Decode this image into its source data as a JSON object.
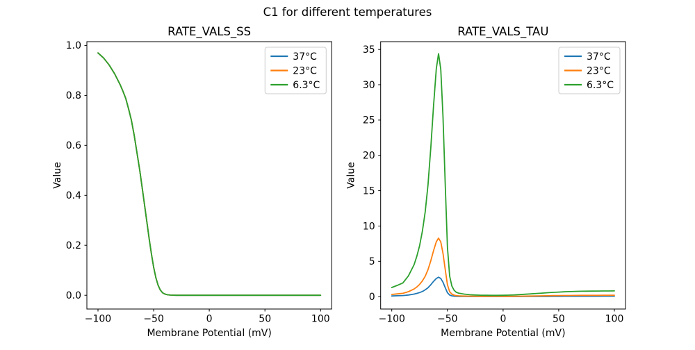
{
  "figure": {
    "title": "C1 for different temperatures",
    "background": "#ffffff"
  },
  "palette": {
    "blue": "#1f77b4",
    "orange": "#ff7f0e",
    "green": "#2ca02c"
  },
  "chart_data": [
    {
      "type": "line",
      "title": "RATE_VALS_SS",
      "xlabel": "Membrane Potential (mV)",
      "ylabel": "Value",
      "xlim": [
        -110,
        110
      ],
      "ylim": [
        -0.055,
        1.015
      ],
      "grid": false,
      "xticks": [
        -100,
        -50,
        0,
        50,
        100
      ],
      "xtick_labels": [
        "−100",
        "−50",
        "0",
        "50",
        "100"
      ],
      "yticks": [
        0.0,
        0.2,
        0.4,
        0.6,
        0.8,
        1.0
      ],
      "ytick_labels": [
        "0.0",
        "0.2",
        "0.4",
        "0.6",
        "0.8",
        "1.0"
      ],
      "legend": {
        "position": "upper right",
        "entries": [
          "37°C",
          "23°C",
          "6.3°C"
        ]
      },
      "note": "all three temperature curves coincide exactly; only the last-drawn (6.3°C, green) is visible",
      "x": [
        -100,
        -95,
        -90,
        -85,
        -80,
        -77.5,
        -75,
        -72.5,
        -70,
        -67.5,
        -65,
        -62.5,
        -60,
        -58,
        -56,
        -54,
        -52,
        -50,
        -48,
        -46,
        -44,
        -42,
        -40,
        -37.5,
        -35,
        -30,
        -25,
        -20,
        -15,
        -10,
        -5,
        0,
        5,
        10,
        15,
        20,
        25,
        30,
        35,
        40,
        45,
        50,
        55,
        60,
        65,
        70,
        75,
        80,
        85,
        90,
        95,
        100
      ],
      "series": [
        {
          "name": "37°C",
          "color": "#1f77b4",
          "values": [
            0.97,
            0.95,
            0.922,
            0.886,
            0.842,
            0.816,
            0.787,
            0.745,
            0.7,
            0.64,
            0.57,
            0.5,
            0.42,
            0.355,
            0.29,
            0.225,
            0.165,
            0.112,
            0.07,
            0.04,
            0.021,
            0.01,
            0.005,
            0.002,
            0.001,
            0,
            0,
            0,
            0,
            0,
            0,
            0,
            0,
            0,
            0,
            0,
            0,
            0,
            0,
            0,
            0,
            0,
            0,
            0,
            0,
            0,
            0,
            0,
            0,
            0,
            0,
            0
          ]
        },
        {
          "name": "23°C",
          "color": "#ff7f0e",
          "values": [
            0.97,
            0.95,
            0.922,
            0.886,
            0.842,
            0.816,
            0.787,
            0.745,
            0.7,
            0.64,
            0.57,
            0.5,
            0.42,
            0.355,
            0.29,
            0.225,
            0.165,
            0.112,
            0.07,
            0.04,
            0.021,
            0.01,
            0.005,
            0.002,
            0.001,
            0,
            0,
            0,
            0,
            0,
            0,
            0,
            0,
            0,
            0,
            0,
            0,
            0,
            0,
            0,
            0,
            0,
            0,
            0,
            0,
            0,
            0,
            0,
            0,
            0,
            0,
            0
          ]
        },
        {
          "name": "6.3°C",
          "color": "#2ca02c",
          "values": [
            0.97,
            0.95,
            0.922,
            0.886,
            0.842,
            0.816,
            0.787,
            0.745,
            0.7,
            0.64,
            0.57,
            0.5,
            0.42,
            0.355,
            0.29,
            0.225,
            0.165,
            0.112,
            0.07,
            0.04,
            0.021,
            0.01,
            0.005,
            0.002,
            0.001,
            0,
            0,
            0,
            0,
            0,
            0,
            0,
            0,
            0,
            0,
            0,
            0,
            0,
            0,
            0,
            0,
            0,
            0,
            0,
            0,
            0,
            0,
            0,
            0,
            0,
            0,
            0
          ]
        }
      ]
    },
    {
      "type": "line",
      "title": "RATE_VALS_TAU",
      "xlabel": "Membrane Potential (mV)",
      "ylabel": "Value",
      "xlim": [
        -110,
        110
      ],
      "ylim": [
        -1.75,
        36.1
      ],
      "grid": false,
      "xticks": [
        -100,
        -50,
        0,
        50,
        100
      ],
      "xtick_labels": [
        "−100",
        "−50",
        "0",
        "50",
        "100"
      ],
      "yticks": [
        0,
        5,
        10,
        15,
        20,
        25,
        30,
        35
      ],
      "ytick_labels": [
        "0",
        "5",
        "10",
        "15",
        "20",
        "25",
        "30",
        "35"
      ],
      "legend": {
        "position": "upper right",
        "entries": [
          "37°C",
          "23°C",
          "6.3°C"
        ]
      },
      "note": "peaks near −58 mV: 6.3°C ≈ 34.4, 23°C ≈ 8.3, 37°C ≈ 2.8",
      "x": [
        -100,
        -95,
        -90,
        -85,
        -80,
        -77.5,
        -75,
        -72.5,
        -70,
        -67.5,
        -65,
        -62.5,
        -60,
        -58,
        -56,
        -54,
        -52,
        -50,
        -48,
        -46,
        -44,
        -42,
        -40,
        -37.5,
        -35,
        -30,
        -25,
        -20,
        -15,
        -10,
        -5,
        0,
        5,
        10,
        15,
        20,
        25,
        30,
        35,
        40,
        45,
        50,
        55,
        60,
        65,
        70,
        75,
        80,
        85,
        90,
        95,
        100
      ],
      "series": [
        {
          "name": "37°C",
          "color": "#1f77b4",
          "values": [
            0.1,
            0.13,
            0.16,
            0.24,
            0.36,
            0.46,
            0.58,
            0.74,
            0.96,
            1.26,
            1.68,
            2.16,
            2.58,
            2.75,
            2.58,
            2.04,
            1.28,
            0.56,
            0.23,
            0.12,
            0.07,
            0.05,
            0.04,
            0.03,
            0.03,
            0.02,
            0.02,
            0.02,
            0.02,
            0.02,
            0.02,
            0.02,
            0.02,
            0.02,
            0.02,
            0.03,
            0.03,
            0.04,
            0.04,
            0.04,
            0.05,
            0.05,
            0.06,
            0.06,
            0.06,
            0.06,
            0.06,
            0.06,
            0.06,
            0.07,
            0.07,
            0.07
          ]
        },
        {
          "name": "23°C",
          "color": "#ff7f0e",
          "values": [
            0.31,
            0.39,
            0.47,
            0.71,
            1.08,
            1.37,
            1.73,
            2.24,
            2.89,
            3.81,
            5.06,
            6.51,
            7.78,
            8.29,
            7.76,
            6.14,
            3.86,
            1.69,
            0.7,
            0.36,
            0.22,
            0.15,
            0.12,
            0.1,
            0.09,
            0.07,
            0.06,
            0.05,
            0.05,
            0.05,
            0.05,
            0.05,
            0.05,
            0.06,
            0.07,
            0.08,
            0.09,
            0.11,
            0.12,
            0.13,
            0.15,
            0.16,
            0.17,
            0.17,
            0.18,
            0.19,
            0.19,
            0.19,
            0.19,
            0.2,
            0.2,
            0.2
          ]
        },
        {
          "name": "6.3°C",
          "color": "#2ca02c",
          "values": [
            1.3,
            1.6,
            1.95,
            2.95,
            4.5,
            5.7,
            7.2,
            9.3,
            12.0,
            15.8,
            21.0,
            27.0,
            32.3,
            34.4,
            32.2,
            25.5,
            16.0,
            7.0,
            2.9,
            1.5,
            0.9,
            0.62,
            0.5,
            0.42,
            0.36,
            0.28,
            0.24,
            0.21,
            0.2,
            0.19,
            0.19,
            0.2,
            0.22,
            0.25,
            0.29,
            0.34,
            0.39,
            0.45,
            0.5,
            0.56,
            0.61,
            0.65,
            0.69,
            0.72,
            0.75,
            0.77,
            0.78,
            0.79,
            0.8,
            0.81,
            0.81,
            0.82
          ]
        }
      ]
    }
  ]
}
